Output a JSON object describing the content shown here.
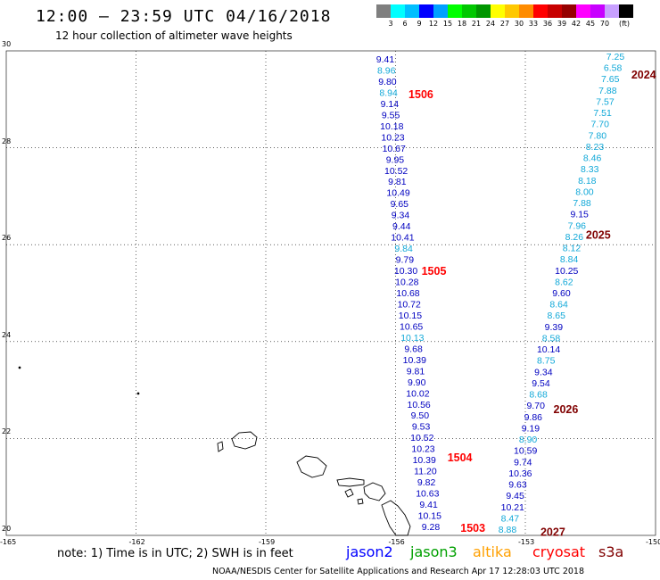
{
  "header": {
    "title": "12:00 – 23:59 UTC 04/16/2018",
    "subtitle": "12 hour collection of altimeter wave heights"
  },
  "colorbar": {
    "unit": "(ft)",
    "colors": [
      "#7f7f7f",
      "#00ffff",
      "#00bfff",
      "#0000ff",
      "#00a0ff",
      "#00ff00",
      "#00c800",
      "#009600",
      "#ffff00",
      "#ffc800",
      "#ff8c00",
      "#ff0000",
      "#c80000",
      "#960000",
      "#ff00ff",
      "#c800ff",
      "#c8a0ff",
      "#000000"
    ],
    "labels": [
      "3",
      "6",
      "9",
      "12",
      "15",
      "18",
      "21",
      "24",
      "27",
      "30",
      "33",
      "36",
      "39",
      "42",
      "45",
      "70"
    ]
  },
  "axes": {
    "x_ticks": [
      "-165",
      "-162",
      "-159",
      "-156",
      "-153",
      "-150"
    ],
    "y_ticks": [
      "30",
      "28",
      "26",
      "24",
      "22",
      "20"
    ]
  },
  "colors": {
    "jason2": "#0000c0",
    "jason2_light": "#10a8d8",
    "cryosat": "#ff0000",
    "s3a": "#800000"
  },
  "tracks": [
    {
      "satellite": "jason2",
      "values": [
        "9.41",
        "8.96",
        "9.80",
        "8.94",
        "9.14",
        "9.55",
        "10.18",
        "10.23",
        "10.67",
        "9.95",
        "10.52",
        "9.81",
        "10.49",
        "9.65",
        "9.34",
        "9.44",
        "10.41",
        "9.84",
        "9.79",
        "10.30",
        "10.28",
        "10.68",
        "10.72",
        "10.15",
        "10.65",
        "10.13",
        "9.68",
        "10.39",
        "9.81",
        "9.90",
        "10.02",
        "10.56",
        "9.50",
        "9.53",
        "10.52",
        "10.23",
        "10.39",
        "11.20",
        "9.82",
        "10.63",
        "9.41",
        "10.15",
        "9.28"
      ],
      "light": [
        1,
        3,
        17,
        25
      ]
    },
    {
      "satellite": "jason2",
      "values": [
        "7.25",
        "6.58",
        "7.65",
        "7.88",
        "7.57",
        "7.51",
        "7.70",
        "7.80",
        "8.23",
        "8.46",
        "8.33",
        "8.18",
        "8.00",
        "7.88",
        "9.15",
        "7.96",
        "8.26",
        "8.12",
        "8.84",
        "10.25",
        "8.62",
        "9.60",
        "8.64",
        "8.65",
        "9.39",
        "8.58",
        "10.14",
        "8.75",
        "9.34",
        "9.54",
        "8.68",
        "9.70",
        "9.86",
        "9.19",
        "8.90",
        "10.59",
        "9.74",
        "10.36",
        "9.63",
        "9.45",
        "10.21",
        "8.47",
        "8.88"
      ],
      "light": [
        0,
        1,
        2,
        3,
        4,
        5,
        6,
        7,
        8,
        9,
        10,
        11,
        12,
        13,
        15,
        16,
        17,
        18,
        20,
        22,
        23,
        25,
        27,
        30,
        34,
        41,
        42
      ]
    }
  ],
  "pass_labels": [
    {
      "text": "1506",
      "lon": -155.7,
      "lat": 29.1,
      "kind": "cryosat"
    },
    {
      "text": "1505",
      "lon": -155.4,
      "lat": 25.45,
      "kind": "cryosat"
    },
    {
      "text": "1504",
      "lon": -154.8,
      "lat": 21.6,
      "kind": "cryosat"
    },
    {
      "text": "1503",
      "lon": -154.5,
      "lat": 20.15,
      "kind": "cryosat"
    },
    {
      "text": "2024",
      "lon": -150.55,
      "lat": 29.5,
      "kind": "s3a"
    },
    {
      "text": "2025",
      "lon": -151.6,
      "lat": 26.2,
      "kind": "s3a"
    },
    {
      "text": "2026",
      "lon": -152.35,
      "lat": 22.6,
      "kind": "s3a"
    },
    {
      "text": "2027",
      "lon": -152.65,
      "lat": 20.06,
      "kind": "s3a"
    }
  ],
  "footer": {
    "note": "note: 1) Time is in UTC; 2) SWH is in feet",
    "satellites": [
      {
        "name": "jason2",
        "color": "#0000ff"
      },
      {
        "name": "jason3",
        "color": "#00a000"
      },
      {
        "name": "altika",
        "color": "#ffa000"
      },
      {
        "name": "cryosat",
        "color": "#ff0000"
      },
      {
        "name": "s3a",
        "color": "#800000"
      }
    ],
    "credit": "NOAA/NESDIS Center for Satellite Applications and Research    Apr 17 12:28:03 UTC 2018"
  }
}
